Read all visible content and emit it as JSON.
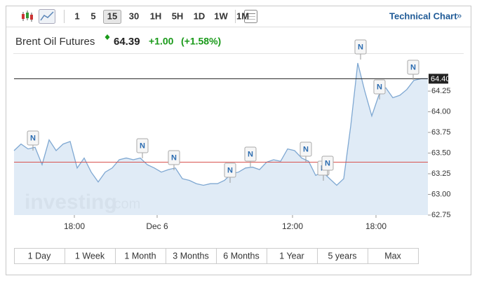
{
  "chart_data": {
    "type": "area",
    "title": "Brent Oil Futures",
    "price": "64.39",
    "change": "+1.00",
    "change_pct": "(+1.58%)",
    "toolbar": [
      "1",
      "5",
      "15",
      "30",
      "1H",
      "5H",
      "1D",
      "1W",
      "1M"
    ],
    "active_interval": 2,
    "link": "Technical Chart",
    "link_arrow": "»",
    "ranges": [
      "1 Day",
      "1 Week",
      "1 Month",
      "3 Months",
      "6 Months",
      "1 Year",
      "5 years",
      "Max"
    ],
    "watermark": "investing",
    "watermark_suffix": ".com",
    "news_label": "N",
    "color": "#7fa8d2",
    "fill": "#dde9f5",
    "x": [
      0,
      1,
      2,
      3,
      4,
      5,
      6,
      7,
      8,
      9,
      10,
      11,
      12,
      13,
      14,
      15,
      16,
      17,
      18,
      19,
      20,
      21,
      22,
      23,
      24,
      25,
      26,
      27,
      28,
      29,
      30,
      31,
      32,
      33,
      34,
      35,
      36,
      37,
      38,
      39,
      40,
      41,
      42,
      43,
      44,
      45,
      46,
      47,
      48,
      49,
      50,
      51,
      52,
      53,
      54,
      55,
      56,
      57,
      58,
      59
    ],
    "values": [
      63.53,
      63.61,
      63.55,
      63.57,
      63.36,
      63.66,
      63.53,
      63.61,
      63.64,
      63.32,
      63.44,
      63.27,
      63.15,
      63.27,
      63.32,
      63.42,
      63.44,
      63.42,
      63.44,
      63.36,
      63.32,
      63.27,
      63.3,
      63.32,
      63.19,
      63.17,
      63.13,
      63.11,
      63.13,
      63.13,
      63.17,
      63.25,
      63.27,
      63.32,
      63.33,
      63.3,
      63.39,
      63.42,
      63.4,
      63.55,
      63.53,
      63.44,
      63.4,
      63.23,
      63.27,
      63.19,
      63.11,
      63.19,
      63.83,
      64.59,
      64.25,
      63.95,
      64.2,
      64.29,
      64.17,
      64.2,
      64.27,
      64.38,
      64.4,
      64.4
    ],
    "xlim": [
      0,
      59
    ],
    "xticks": [
      {
        "value": 8.6,
        "label": "18:00"
      },
      {
        "value": 20.4,
        "label": "Dec 6"
      },
      {
        "value": 39.7,
        "label": "12:00"
      },
      {
        "value": 51.6,
        "label": "18:00"
      }
    ],
    "ylim": [
      62.75,
      64.7
    ],
    "yticks": [
      {
        "value": 62.75,
        "label": "62.75"
      },
      {
        "value": 63,
        "label": "63.00"
      },
      {
        "value": 63.25,
        "label": "63.25"
      },
      {
        "value": 63.5,
        "label": "63.50"
      },
      {
        "value": 63.75,
        "label": "63.75"
      },
      {
        "value": 64,
        "label": "64.00"
      },
      {
        "value": 64.25,
        "label": "64.25"
      }
    ],
    "last_price": {
      "value": 64.4,
      "label": "64.40"
    },
    "reference_line": 63.39
  }
}
